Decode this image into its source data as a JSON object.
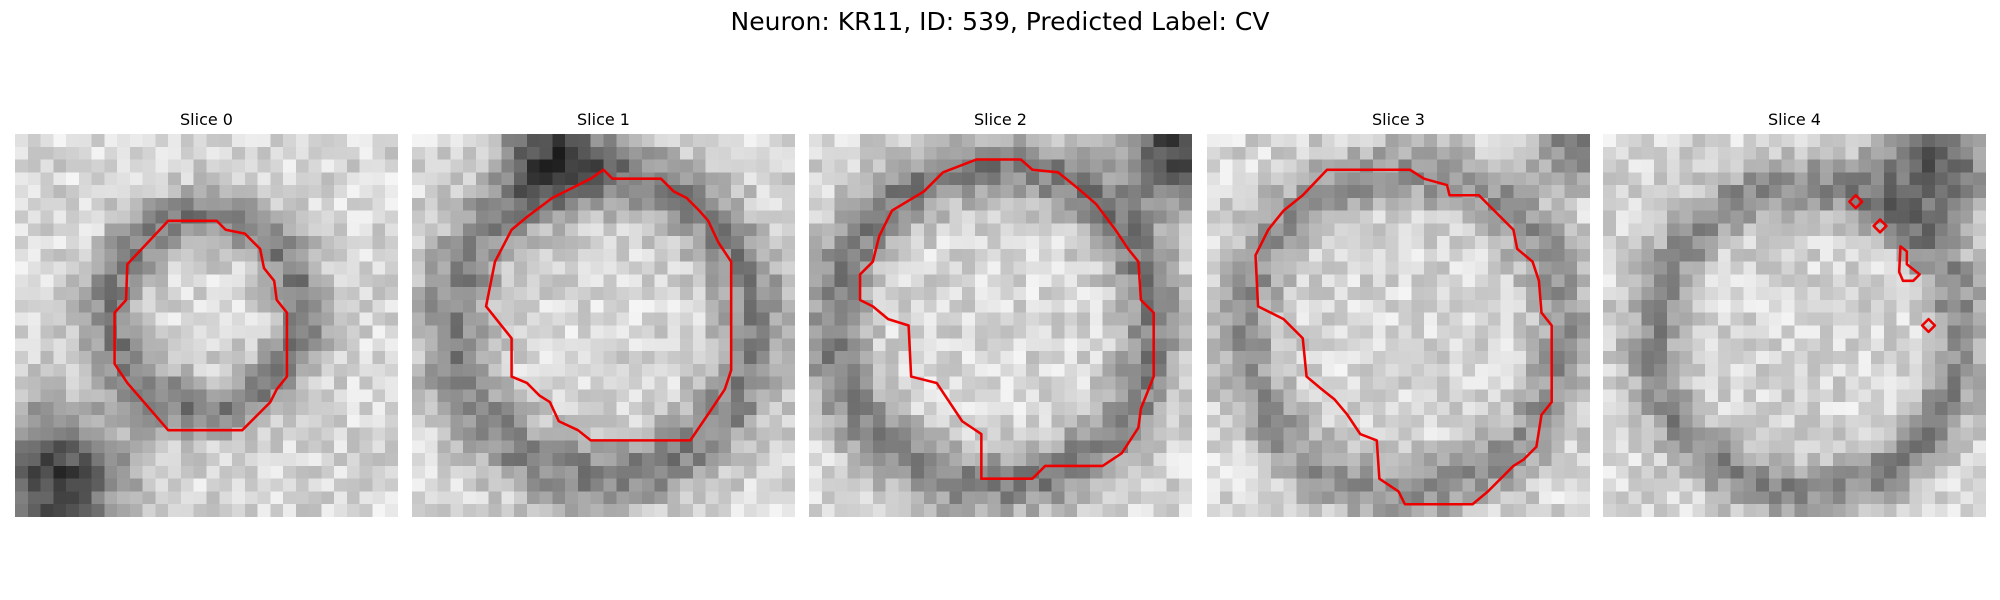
{
  "title": "Neuron: KR11, ID: 539, Predicted Label: CV",
  "panels": [
    {
      "title": "Slice 0"
    },
    {
      "title": "Slice 1"
    },
    {
      "title": "Slice 2"
    },
    {
      "title": "Slice 3"
    },
    {
      "title": "Slice 4"
    }
  ]
}
